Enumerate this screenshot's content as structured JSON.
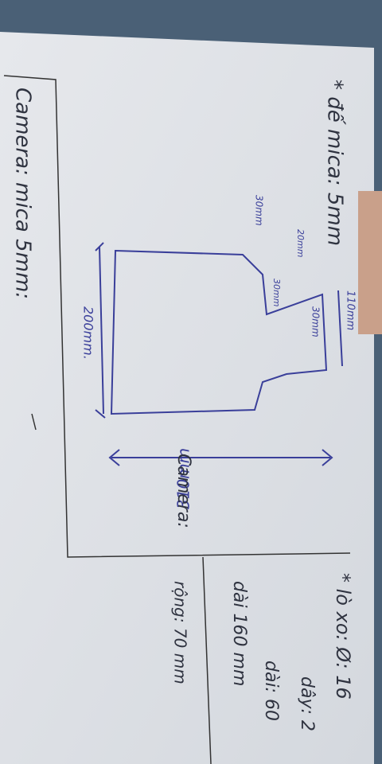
{
  "sketch": {
    "heading": "* đế mica: 5mm",
    "camera_note": "Camera: mica 5mm:",
    "dimensions": [
      "30mm",
      "20mm",
      "30mm",
      "30mm",
      "110mm",
      "200mm.",
      "310mm"
    ],
    "camera": {
      "label": "Camera:",
      "length": "dài 160 mm",
      "width": "rộng: 70 mm"
    },
    "spring": {
      "label": "* lò xo: Ø: 16",
      "wire": "dây: 2",
      "length": "dài: 60"
    }
  }
}
